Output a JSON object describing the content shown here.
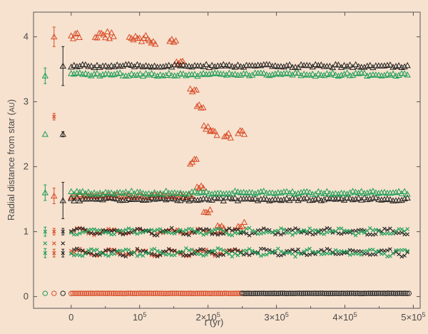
{
  "chart_data": {
    "type": "scatter",
    "title": "",
    "xlabel": "t (yr)",
    "ylabel": "Radial distance from star (AU)",
    "xlim": [
      -55000,
      510000
    ],
    "ylim": [
      -0.18,
      4.38
    ],
    "grid": false,
    "x_ticks": [
      {
        "value": 0,
        "label": "0"
      },
      {
        "value": 100000,
        "label": "10^5"
      },
      {
        "value": 200000,
        "label": "2×10^5"
      },
      {
        "value": 300000,
        "label": "3×10^5"
      },
      {
        "value": 400000,
        "label": "4×10^5"
      },
      {
        "value": 500000,
        "label": "5×10^5"
      }
    ],
    "y_ticks": [
      0,
      1,
      2,
      3,
      4
    ],
    "colors": {
      "red": "#d94a26",
      "black": "#222222",
      "green": "#1a9c55"
    },
    "series": [
      {
        "color": "red",
        "marker": "circle",
        "note": "inner body",
        "x_range": [
          0,
          250000
        ],
        "y": 0.05
      },
      {
        "color": "black",
        "marker": "circle",
        "note": "inner body",
        "x_range": [
          250000,
          495000
        ],
        "y": 0.05
      },
      {
        "color": "red",
        "marker": "triangle",
        "note": "outer giant",
        "points": [
          [
            0,
            4.0
          ],
          [
            50000,
            4.02
          ],
          [
            100000,
            3.98
          ],
          [
            120000,
            3.9
          ],
          [
            150000,
            3.95
          ],
          [
            160000,
            3.6
          ],
          [
            180000,
            3.2
          ],
          [
            190000,
            2.9
          ],
          [
            200000,
            2.6
          ],
          [
            210000,
            2.5
          ],
          [
            230000,
            2.5
          ],
          [
            250000,
            2.5
          ],
          [
            180000,
            2.1
          ],
          [
            190000,
            1.7
          ],
          [
            200000,
            1.3
          ],
          [
            220000,
            1.1
          ],
          [
            250000,
            1.1
          ]
        ]
      },
      {
        "color": "black",
        "marker": "triangle",
        "note": "outer giant",
        "x_range": [
          0,
          495000
        ],
        "y": 3.55
      },
      {
        "color": "green",
        "marker": "triangle",
        "note": "outer giant",
        "x_range": [
          0,
          495000
        ],
        "y": 3.42
      },
      {
        "color": "red",
        "marker": "triangle",
        "note": "inner giant",
        "x_range": [
          0,
          180000
        ],
        "y": 1.55
      },
      {
        "color": "black",
        "marker": "triangle",
        "note": "inner giant",
        "x_range": [
          0,
          495000
        ],
        "y": 1.5
      },
      {
        "color": "green",
        "marker": "triangle",
        "note": "inner giant",
        "x_range": [
          0,
          495000
        ],
        "y": 1.6
      },
      {
        "color": "red",
        "marker": "cross",
        "note": "planet",
        "x_range": [
          0,
          250000
        ],
        "y": 1.0
      },
      {
        "color": "red",
        "marker": "cross",
        "note": "planet",
        "x_range": [
          0,
          250000
        ],
        "y": 0.68
      },
      {
        "color": "black",
        "marker": "cross",
        "note": "planet",
        "x_range": [
          0,
          495000
        ],
        "y": 1.0
      },
      {
        "color": "black",
        "marker": "cross",
        "note": "planet",
        "x_range": [
          0,
          495000
        ],
        "y": 0.68
      },
      {
        "color": "green",
        "marker": "cross",
        "note": "planet",
        "x_range": [
          0,
          495000
        ],
        "y": 1.0
      },
      {
        "color": "green",
        "marker": "cross",
        "note": "planet",
        "x_range": [
          0,
          495000
        ],
        "y": 0.68
      }
    ],
    "reference_markers": [
      {
        "color": "green",
        "marker": "circle",
        "x": -38000,
        "y": 0.05
      },
      {
        "color": "red",
        "marker": "circle",
        "x": -25000,
        "y": 0.05
      },
      {
        "color": "black",
        "marker": "circle",
        "x": -12000,
        "y": 0.05
      },
      {
        "color": "green",
        "marker": "cross",
        "x": -38000,
        "y": 0.67,
        "err": 0.07
      },
      {
        "color": "red",
        "marker": "cross",
        "x": -25000,
        "y": 0.67,
        "err": 0.06
      },
      {
        "color": "black",
        "marker": "cross",
        "x": -12000,
        "y": 0.67,
        "err": 0.06
      },
      {
        "color": "green",
        "marker": "cross",
        "x": -38000,
        "y": 0.82
      },
      {
        "color": "red",
        "marker": "cross",
        "x": -25000,
        "y": 0.82
      },
      {
        "color": "black",
        "marker": "cross",
        "x": -12000,
        "y": 0.82
      },
      {
        "color": "green",
        "marker": "cross",
        "x": -38000,
        "y": 1.0,
        "err": 0.07
      },
      {
        "color": "red",
        "marker": "cross",
        "x": -25000,
        "y": 1.0,
        "err": 0.05
      },
      {
        "color": "black",
        "marker": "cross",
        "x": -12000,
        "y": 1.0,
        "err": 0.05
      },
      {
        "color": "green",
        "marker": "triangle",
        "x": -38000,
        "y": 1.6,
        "err": 0.12
      },
      {
        "color": "red",
        "marker": "triangle",
        "x": -25000,
        "y": 1.55,
        "err": 0.12
      },
      {
        "color": "black",
        "marker": "triangle",
        "x": -12000,
        "y": 1.48,
        "err": 0.28
      },
      {
        "color": "green",
        "marker": "triangle",
        "x": -38000,
        "y": 2.5
      },
      {
        "color": "red",
        "marker": "cross",
        "x": -25000,
        "y": 2.77,
        "err": 0.05
      },
      {
        "color": "black",
        "marker": "triangle",
        "x": -12000,
        "y": 2.5,
        "err": 0.04
      },
      {
        "color": "green",
        "marker": "triangle",
        "x": -38000,
        "y": 3.4,
        "err": 0.12
      },
      {
        "color": "red",
        "marker": "triangle",
        "x": -25000,
        "y": 4.0,
        "err": 0.15
      },
      {
        "color": "black",
        "marker": "triangle",
        "x": -12000,
        "y": 3.55,
        "err": 0.3
      }
    ]
  }
}
